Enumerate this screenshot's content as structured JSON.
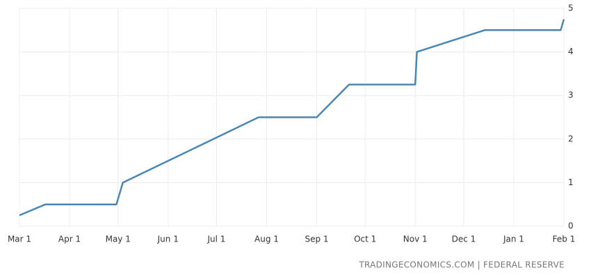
{
  "chart_data": {
    "type": "line",
    "source": "TRADINGECONOMICS.COM | FEDERAL RESERVE",
    "x": [
      0,
      16,
      60,
      64,
      148,
      184,
      204,
      245,
      246,
      288,
      335,
      337
    ],
    "series": [
      {
        "color": "#4a86b4",
        "values": [
          0.25,
          0.5,
          0.5,
          1,
          2.5,
          2.5,
          3.25,
          3.25,
          4,
          4.5,
          4.5,
          4.75
        ]
      }
    ],
    "xlim": [
      0,
      337
    ],
    "xticks": [
      {
        "value": 0,
        "label": "Mar 1"
      },
      {
        "value": 31,
        "label": "Apr 1"
      },
      {
        "value": 61,
        "label": "May 1"
      },
      {
        "value": 92,
        "label": "Jun 1"
      },
      {
        "value": 122,
        "label": "Jul 1"
      },
      {
        "value": 153,
        "label": "Aug 1"
      },
      {
        "value": 184,
        "label": "Sep 1"
      },
      {
        "value": 214,
        "label": "Oct 1"
      },
      {
        "value": 245,
        "label": "Nov 1"
      },
      {
        "value": 275,
        "label": "Dec 1"
      },
      {
        "value": 306,
        "label": "Jan 1"
      },
      {
        "value": 337,
        "label": "Feb 1"
      }
    ],
    "ylim": [
      0,
      5
    ],
    "yticks": [
      0,
      1,
      2,
      3,
      4,
      5
    ],
    "grid": true
  }
}
